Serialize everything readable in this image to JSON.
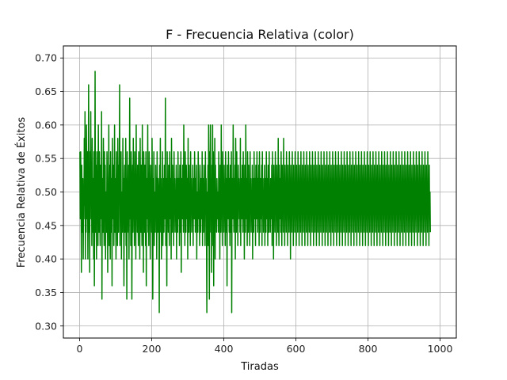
{
  "chart_data": {
    "type": "line",
    "title": "F - Frecuencia Relativa (color)",
    "xlabel": "Tiradas",
    "ylabel": "Frecuencia Relativa de Éxitos",
    "xlim": [
      -45,
      1045
    ],
    "ylim": [
      0.282,
      0.718
    ],
    "x_ticks": [
      0,
      200,
      400,
      600,
      800,
      1000
    ],
    "x_tick_labels": [
      "0",
      "200",
      "400",
      "600",
      "800",
      "1000"
    ],
    "y_ticks": [
      0.3,
      0.35,
      0.4,
      0.45,
      0.5,
      0.55,
      0.6,
      0.65,
      0.7
    ],
    "y_tick_labels": [
      "0.30",
      "0.35",
      "0.40",
      "0.45",
      "0.50",
      "0.55",
      "0.60",
      "0.65",
      "0.70"
    ],
    "grid": true,
    "line_color": "#008000",
    "series": [
      {
        "x_start": 1,
        "x_step": 1,
        "values": [
          0.56,
          0.46,
          0.56,
          0.5,
          0.38,
          0.54,
          0.48,
          0.44,
          0.52,
          0.4,
          0.5,
          0.46,
          0.58,
          0.48,
          0.62,
          0.4,
          0.52,
          0.44,
          0.6,
          0.5,
          0.46,
          0.56,
          0.4,
          0.48,
          0.66,
          0.44,
          0.52,
          0.38,
          0.56,
          0.5,
          0.62,
          0.46,
          0.54,
          0.42,
          0.58,
          0.48,
          0.44,
          0.52,
          0.4,
          0.56,
          0.36,
          0.5,
          0.68,
          0.44,
          0.54,
          0.48,
          0.4,
          0.56,
          0.46,
          0.52,
          0.42,
          0.6,
          0.5,
          0.44,
          0.56,
          0.48,
          0.42,
          0.54,
          0.5,
          0.46,
          0.62,
          0.34,
          0.52,
          0.48,
          0.44,
          0.58,
          0.5,
          0.42,
          0.56,
          0.46,
          0.54,
          0.4,
          0.5,
          0.48,
          0.44,
          0.56,
          0.52,
          0.38,
          0.5,
          0.46,
          0.6,
          0.42,
          0.54,
          0.48,
          0.4,
          0.56,
          0.5,
          0.44,
          0.52,
          0.36,
          0.58,
          0.48,
          0.46,
          0.54,
          0.42,
          0.5,
          0.6,
          0.44,
          0.52,
          0.48,
          0.4,
          0.56,
          0.46,
          0.5,
          0.42,
          0.58,
          0.48,
          0.44,
          0.54,
          0.5,
          0.66,
          0.42,
          0.52,
          0.46,
          0.56,
          0.4,
          0.5,
          0.48,
          0.44,
          0.58,
          0.46,
          0.52,
          0.36,
          0.5,
          0.54,
          0.44,
          0.48,
          0.58,
          0.42,
          0.52,
          0.34,
          0.56,
          0.46,
          0.5,
          0.44,
          0.54,
          0.4,
          0.48,
          0.64,
          0.46,
          0.52,
          0.42,
          0.56,
          0.5,
          0.34,
          0.48,
          0.54,
          0.44,
          0.58,
          0.46,
          0.5,
          0.42,
          0.56,
          0.48,
          0.52,
          0.4,
          0.6,
          0.46,
          0.5,
          0.44,
          0.54,
          0.48,
          0.42,
          0.56,
          0.46,
          0.52,
          0.4,
          0.58,
          0.48,
          0.44,
          0.54,
          0.5,
          0.42,
          0.6,
          0.46,
          0.52,
          0.38,
          0.56,
          0.48,
          0.44,
          0.54,
          0.5,
          0.42,
          0.56,
          0.36,
          0.52,
          0.48,
          0.46,
          0.6,
          0.44,
          0.5,
          0.42,
          0.56,
          0.48,
          0.52,
          0.4,
          0.54,
          0.46,
          0.5,
          0.44,
          0.58,
          0.48,
          0.34,
          0.52,
          0.46,
          0.56,
          0.42,
          0.5,
          0.48,
          0.44,
          0.54,
          0.46,
          0.52,
          0.4,
          0.56,
          0.48,
          0.44,
          0.52,
          0.5,
          0.46,
          0.32,
          0.54,
          0.48,
          0.58,
          0.44,
          0.52,
          0.4,
          0.5,
          0.46,
          0.56,
          0.42,
          0.52,
          0.48,
          0.44,
          0.54,
          0.5,
          0.46,
          0.64,
          0.42,
          0.52,
          0.48,
          0.36,
          0.56,
          0.46,
          0.5,
          0.44,
          0.54,
          0.48,
          0.42,
          0.56,
          0.5,
          0.46,
          0.52,
          0.4,
          0.58,
          0.48,
          0.44,
          0.54,
          0.46,
          0.5,
          0.42,
          0.56,
          0.48,
          0.52,
          0.44,
          0.5,
          0.46,
          0.54,
          0.4,
          0.52,
          0.48,
          0.44,
          0.56,
          0.5,
          0.46,
          0.52,
          0.42,
          0.54,
          0.48,
          0.44,
          0.56,
          0.38,
          0.52,
          0.48,
          0.46,
          0.54,
          0.5,
          0.44,
          0.6,
          0.46,
          0.52,
          0.42,
          0.56,
          0.48,
          0.44,
          0.54,
          0.5,
          0.46,
          0.52,
          0.4,
          0.58,
          0.48,
          0.44,
          0.54,
          0.46,
          0.5,
          0.42,
          0.56,
          0.48,
          0.52,
          0.44,
          0.5,
          0.46,
          0.54,
          0.42,
          0.52,
          0.48,
          0.46,
          0.56,
          0.5,
          0.44,
          0.52,
          0.46,
          0.54,
          0.4,
          0.5,
          0.48,
          0.44,
          0.56,
          0.52,
          0.46,
          0.5,
          0.42,
          0.54,
          0.48,
          0.44,
          0.52,
          0.5,
          0.46,
          0.56,
          0.42,
          0.52,
          0.48,
          0.44,
          0.54,
          0.46,
          0.5,
          0.42,
          0.56,
          0.48,
          0.52,
          0.44,
          0.32,
          0.5,
          0.46,
          0.54,
          0.42,
          0.6,
          0.48,
          0.34,
          0.56,
          0.5,
          0.6,
          0.44,
          0.52,
          0.38,
          0.54,
          0.48,
          0.6,
          0.42,
          0.56,
          0.36,
          0.52,
          0.48,
          0.58,
          0.4,
          0.54,
          0.46,
          0.5,
          0.44,
          0.52,
          0.48,
          0.46,
          0.5,
          0.44,
          0.56,
          0.46,
          0.52,
          0.4,
          0.54,
          0.48,
          0.44,
          0.6,
          0.46,
          0.5,
          0.42,
          0.56,
          0.48,
          0.52,
          0.44,
          0.54,
          0.46,
          0.5,
          0.42,
          0.56,
          0.48,
          0.44,
          0.52,
          0.36,
          0.54,
          0.48,
          0.46,
          0.56,
          0.5,
          0.44,
          0.52,
          0.42,
          0.54,
          0.48,
          0.44,
          0.56,
          0.32,
          0.52,
          0.48,
          0.46,
          0.6,
          0.5,
          0.44,
          0.52,
          0.46,
          0.54,
          0.4,
          0.58,
          0.48,
          0.44,
          0.56,
          0.46,
          0.5,
          0.42,
          0.54,
          0.48,
          0.52,
          0.46,
          0.5,
          0.44,
          0.58,
          0.42,
          0.52,
          0.48,
          0.46,
          0.54,
          0.5,
          0.44,
          0.56,
          0.46,
          0.52,
          0.4,
          0.54,
          0.48,
          0.44,
          0.6,
          0.5,
          0.46,
          0.52,
          0.42,
          0.56,
          0.48,
          0.44,
          0.54,
          0.46,
          0.5,
          0.42,
          0.56,
          0.48,
          0.52,
          0.44,
          0.5,
          0.46,
          0.54,
          0.4,
          0.52,
          0.48,
          0.44,
          0.56,
          0.5,
          0.46,
          0.52,
          0.42,
          0.54,
          0.48,
          0.46,
          0.56,
          0.5,
          0.44,
          0.52,
          0.46,
          0.54,
          0.42,
          0.56,
          0.48,
          0.44,
          0.52,
          0.5,
          0.46,
          0.54,
          0.42,
          0.56,
          0.48,
          0.52,
          0.44,
          0.5,
          0.46,
          0.54,
          0.42,
          0.52,
          0.48,
          0.44,
          0.56,
          0.5,
          0.46,
          0.52,
          0.42,
          0.54,
          0.48,
          0.44,
          0.56,
          0.46,
          0.5,
          0.44,
          0.52,
          0.48,
          0.46,
          0.54,
          0.42,
          0.56,
          0.48,
          0.52,
          0.4,
          0.54,
          0.46,
          0.5,
          0.44,
          0.56,
          0.48,
          0.52,
          0.42,
          0.54,
          0.46,
          0.5,
          0.44,
          0.58,
          0.48,
          0.42,
          0.54,
          0.5,
          0.46,
          0.52,
          0.44,
          0.56,
          0.48,
          0.42,
          0.54,
          0.46,
          0.5,
          0.44,
          0.58,
          0.48,
          0.52,
          0.42,
          0.54,
          0.46,
          0.5,
          0.44,
          0.56,
          0.48,
          0.52,
          0.42,
          0.54,
          0.46,
          0.5,
          0.44,
          0.56,
          0.48,
          0.52,
          0.4,
          0.54,
          0.46,
          0.5,
          0.44,
          0.56,
          0.48,
          0.52,
          0.42,
          0.54,
          0.46,
          0.5,
          0.44,
          0.56,
          0.48,
          0.52,
          0.42,
          0.54,
          0.46,
          0.5,
          0.44,
          0.56,
          0.48,
          0.52,
          0.42,
          0.54,
          0.46,
          0.5,
          0.44,
          0.56,
          0.48,
          0.52,
          0.42,
          0.54,
          0.46,
          0.5,
          0.44,
          0.56,
          0.48,
          0.52,
          0.42,
          0.54,
          0.46,
          0.5,
          0.44,
          0.56,
          0.48,
          0.52,
          0.42,
          0.54,
          0.46,
          0.5,
          0.44,
          0.56,
          0.48,
          0.52,
          0.42,
          0.54,
          0.46,
          0.5,
          0.44,
          0.56,
          0.48,
          0.52,
          0.42,
          0.54,
          0.46,
          0.5,
          0.44,
          0.56,
          0.48,
          0.52,
          0.42,
          0.54,
          0.46,
          0.5,
          0.44,
          0.56,
          0.48,
          0.52,
          0.42,
          0.54,
          0.46,
          0.5,
          0.44,
          0.56,
          0.48,
          0.52,
          0.42,
          0.54,
          0.46,
          0.5,
          0.44,
          0.56,
          0.48,
          0.52,
          0.42,
          0.54,
          0.46,
          0.5,
          0.44,
          0.56,
          0.48,
          0.52,
          0.42,
          0.54,
          0.46,
          0.5,
          0.44,
          0.56,
          0.48,
          0.52,
          0.42,
          0.54,
          0.46,
          0.5,
          0.44,
          0.56,
          0.48,
          0.52,
          0.42,
          0.54,
          0.46,
          0.5,
          0.44,
          0.56,
          0.48,
          0.52,
          0.42,
          0.54,
          0.46,
          0.5,
          0.44,
          0.56,
          0.48,
          0.52,
          0.42,
          0.54,
          0.46,
          0.5,
          0.44,
          0.56,
          0.48,
          0.52,
          0.42,
          0.54,
          0.46,
          0.5,
          0.44,
          0.56,
          0.48,
          0.52,
          0.42,
          0.54,
          0.46,
          0.5,
          0.44,
          0.56,
          0.48,
          0.52,
          0.42,
          0.54,
          0.46,
          0.5,
          0.44,
          0.56,
          0.48,
          0.52,
          0.42,
          0.54,
          0.46,
          0.5,
          0.44,
          0.56,
          0.48,
          0.52,
          0.42,
          0.54,
          0.46,
          0.5,
          0.44,
          0.56,
          0.48,
          0.52,
          0.42,
          0.54,
          0.46,
          0.5,
          0.44,
          0.56,
          0.48,
          0.52,
          0.42,
          0.54,
          0.46,
          0.5,
          0.44,
          0.56,
          0.48,
          0.52,
          0.42,
          0.54,
          0.46,
          0.5,
          0.44,
          0.56,
          0.48,
          0.52,
          0.42,
          0.54,
          0.46,
          0.5,
          0.44,
          0.56,
          0.48,
          0.52,
          0.42,
          0.54,
          0.46,
          0.5,
          0.44,
          0.56,
          0.48,
          0.52,
          0.42,
          0.54,
          0.46,
          0.5,
          0.44,
          0.56,
          0.48,
          0.52,
          0.42,
          0.54,
          0.46,
          0.5,
          0.44,
          0.56,
          0.48,
          0.52,
          0.42,
          0.54,
          0.46,
          0.5,
          0.44,
          0.56,
          0.48,
          0.52,
          0.42,
          0.54,
          0.46,
          0.5,
          0.44,
          0.56,
          0.48,
          0.52,
          0.42,
          0.54,
          0.46,
          0.5,
          0.44,
          0.56,
          0.48,
          0.52,
          0.42,
          0.54,
          0.46,
          0.5,
          0.44,
          0.56,
          0.48,
          0.52,
          0.42,
          0.54,
          0.46,
          0.5,
          0.44,
          0.56,
          0.48,
          0.52,
          0.42,
          0.54,
          0.46,
          0.5,
          0.44,
          0.56,
          0.48,
          0.52,
          0.42,
          0.54,
          0.46,
          0.5,
          0.44,
          0.56,
          0.48,
          0.52,
          0.42,
          0.54,
          0.46,
          0.5,
          0.44,
          0.56,
          0.48,
          0.52,
          0.42,
          0.54,
          0.46,
          0.5,
          0.44,
          0.56,
          0.48,
          0.52,
          0.42,
          0.54,
          0.46,
          0.5,
          0.44,
          0.56,
          0.48,
          0.52,
          0.42,
          0.54,
          0.46,
          0.5,
          0.44,
          0.56,
          0.48,
          0.52,
          0.42,
          0.54,
          0.46,
          0.5,
          0.44,
          0.56,
          0.48,
          0.52,
          0.42,
          0.54,
          0.46,
          0.5,
          0.44,
          0.56,
          0.48,
          0.52,
          0.42,
          0.54,
          0.46,
          0.5,
          0.44,
          0.56,
          0.48,
          0.52,
          0.42,
          0.54,
          0.46,
          0.5,
          0.44,
          0.56,
          0.48,
          0.52,
          0.42,
          0.54,
          0.46,
          0.5,
          0.44,
          0.56,
          0.48,
          0.52,
          0.42,
          0.54,
          0.46,
          0.5,
          0.44,
          0.56,
          0.48,
          0.52,
          0.42,
          0.54,
          0.46,
          0.5,
          0.44,
          0.56,
          0.48,
          0.52,
          0.42,
          0.54,
          0.46,
          0.5,
          0.44
        ]
      }
    ]
  }
}
